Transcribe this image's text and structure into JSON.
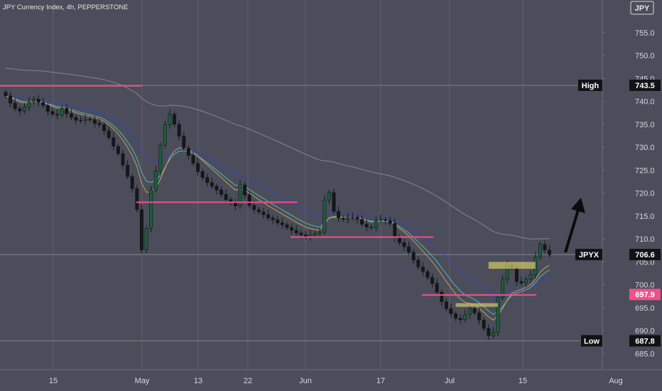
{
  "header": {
    "title": "JPY Currency Index, 4h, PEPPERSTONE",
    "currency_badge": "JPY"
  },
  "colors": {
    "background": "#4b4e5a",
    "grid": "#5e616c",
    "axis_text": "#d6d8de",
    "candle_up": "#1b5e3c",
    "candle_down": "#16171b",
    "wick": "#16171b",
    "resistance_line": "#f0508a",
    "zone": "#c9c26a",
    "ma_fast": "#d7a84a",
    "ma_mid": "#4fc3c9",
    "ma_slow": "#3d3fc0",
    "ma_long": "#8a8c95",
    "arrow": "#0b0b0d"
  },
  "chart_data": {
    "type": "candlestick",
    "title": "JPY Currency Index, 4h, PEPPERSTONE",
    "y_axis": {
      "side": "right",
      "range": [
        681.5,
        759
      ],
      "ticks": [
        685.0,
        690.0,
        695.0,
        700.0,
        705.0,
        710.0,
        715.0,
        720.0,
        725.0,
        730.0,
        735.0,
        740.0,
        745.0,
        750.0,
        755.0
      ]
    },
    "x_axis": {
      "tick_labels": [
        "15",
        "May",
        "13",
        "22",
        "Jun",
        "17",
        "Jul",
        "15",
        "Aug"
      ]
    },
    "grid": true,
    "series_close": [
      741.2,
      739.6,
      738.4,
      737.9,
      738.8,
      739.9,
      740.5,
      739.8,
      739.1,
      737.8,
      737.2,
      737.0,
      738.5,
      737.3,
      736.5,
      735.9,
      735.8,
      736.1,
      736.0,
      735.2,
      734.9,
      733.6,
      732.1,
      730.2,
      728.6,
      726.1,
      723.6,
      721.0,
      716.4,
      707.6,
      712.3,
      720.7,
      724.8,
      730.4,
      734.9,
      737.2,
      735.0,
      732.4,
      729.8,
      728.2,
      726.5,
      724.7,
      723.4,
      722.3,
      721.5,
      720.7,
      719.7,
      718.6,
      717.9,
      717.2,
      721.8,
      719.6,
      717.3,
      716.4,
      715.9,
      715.3,
      714.6,
      714.2,
      713.5,
      713.1,
      712.5,
      711.9,
      711.3,
      710.9,
      710.5,
      710.9,
      711.2,
      711.5,
      718.5,
      720.1,
      716.0,
      714.6,
      714.3,
      714.7,
      714.7,
      714.3,
      713.2,
      712.6,
      712.6,
      714.1,
      714.2,
      714.0,
      713.4,
      710.4,
      709.2,
      708.3,
      707.1,
      705.4,
      703.9,
      702.9,
      701.6,
      700.3,
      698.4,
      696.3,
      694.8,
      693.7,
      692.7,
      692.4,
      693.5,
      694.8,
      693.9,
      692.3,
      690.5,
      688.9,
      689.7,
      697.2,
      701.2,
      704.3,
      703.8,
      700.7,
      700.4,
      701.2,
      702.2,
      706.0,
      708.8,
      707.6,
      706.6
    ],
    "levels": {
      "high": {
        "label": "High",
        "value": 743.5
      },
      "last": {
        "label": "JPYX",
        "value": 706.6
      },
      "line_marker": {
        "value": 697.9
      },
      "low": {
        "label": "Low",
        "value": 687.8
      }
    },
    "horizontal_lines": [
      {
        "value": 743.4,
        "from_bar": 0,
        "to_bar": 28
      },
      {
        "value": 718.0,
        "from_bar": 29,
        "to_bar": 61
      },
      {
        "value": 710.4,
        "from_bar": 62,
        "to_bar": 90
      },
      {
        "value": 697.8,
        "from_bar": 90,
        "to_bar": 112
      }
    ],
    "zones": [
      {
        "low": 695.2,
        "high": 696.0,
        "from_bar": 96,
        "to_bar": 105
      },
      {
        "low": 703.5,
        "high": 705.0,
        "from_bar": 103,
        "to_bar": 113
      }
    ],
    "moving_averages": [
      "fast",
      "mid",
      "slow",
      "long"
    ],
    "annotation_arrow": {
      "direction": "up-right"
    }
  }
}
